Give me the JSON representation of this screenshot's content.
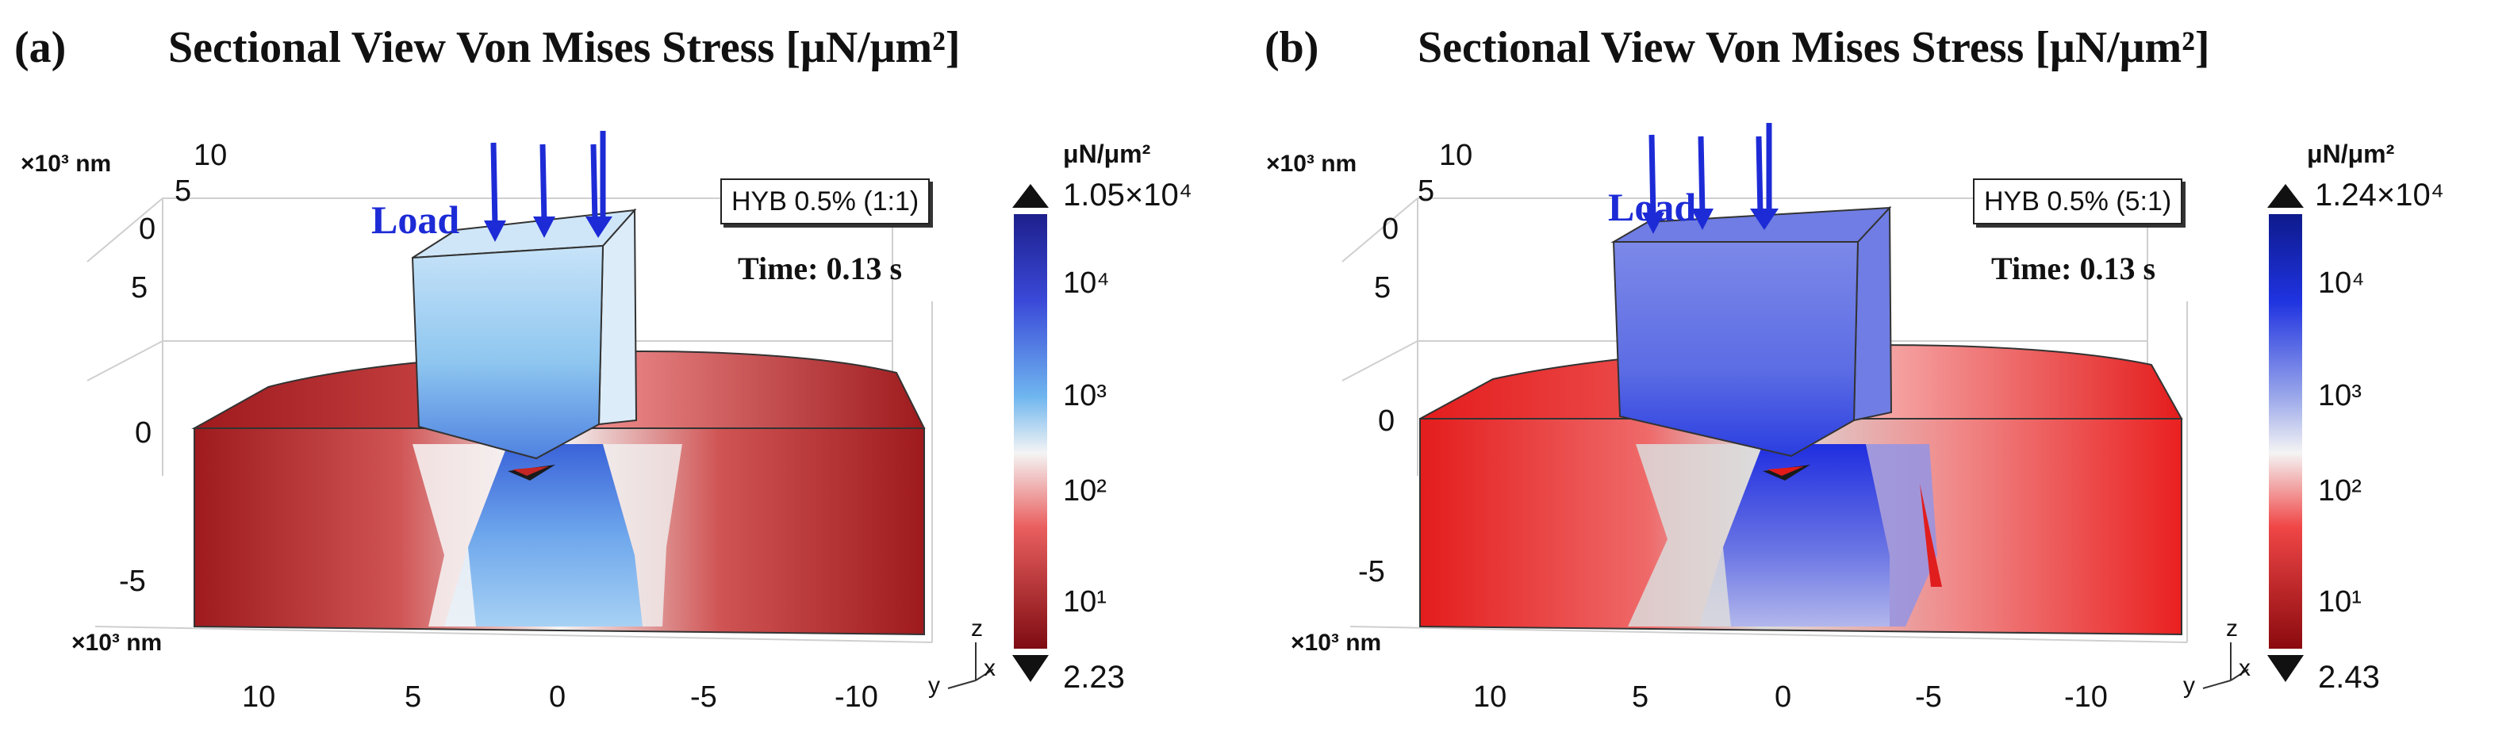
{
  "figure": {
    "colorbar_colors": {
      "max": "#1d1f8c",
      "high": "#3a49d8",
      "mid_high": "#6fb6ef",
      "mid": "#f4f4f4",
      "mid_low": "#ea5f5f",
      "low": "#7e0c12"
    },
    "load_arrow_color": "#1d2bd6"
  },
  "panels": [
    {
      "label": "(a)",
      "title": "Sectional View Von Mises Stress [μN/μm²]",
      "load_label": "Load",
      "annotation": "HYB 0.5% (1:1)",
      "time_label": "Time: 0.13 s",
      "units_top": "×10³ nm",
      "units_bottom": "×10³ nm",
      "back_z_ticks": [
        "10",
        "5",
        "0"
      ],
      "front_z_ticks": [
        "5",
        "0",
        "-5"
      ],
      "y_ticks": [
        "10",
        "5",
        "0",
        "-5",
        "-10"
      ],
      "axis_labels": {
        "z": "z",
        "y": "y",
        "x": "x"
      },
      "colorbar": {
        "unit": "μN/μm²",
        "max_label": "1.05×10⁴",
        "min_label": "2.23",
        "ticks": [
          "10⁴",
          "10³",
          "10²",
          "10¹"
        ]
      }
    },
    {
      "label": "(b)",
      "title": "Sectional View Von Mises Stress [μN/μm²]",
      "load_label": "Load",
      "annotation": "HYB 0.5% (5:1)",
      "time_label": "Time: 0.13 s",
      "units_top": "×10³ nm",
      "units_bottom": "×10³ nm",
      "back_z_ticks": [
        "10",
        "5",
        "0"
      ],
      "front_z_ticks": [
        "5",
        "0",
        "-5"
      ],
      "y_ticks": [
        "10",
        "5",
        "0",
        "-5",
        "-10"
      ],
      "axis_labels": {
        "z": "z",
        "y": "y",
        "x": "x"
      },
      "colorbar": {
        "unit": "μN/μm²",
        "max_label": "1.24×10⁴",
        "min_label": "2.43",
        "ticks": [
          "10⁴",
          "10³",
          "10²",
          "10¹"
        ]
      }
    }
  ]
}
